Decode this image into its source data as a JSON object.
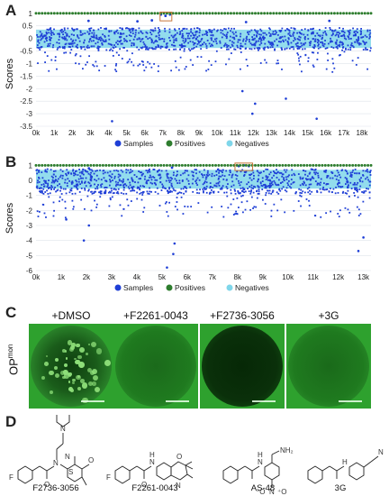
{
  "panels": {
    "a": "A",
    "b": "B",
    "c": "C",
    "d": "D"
  },
  "chart_data": [
    {
      "type": "scatter",
      "panel": "A",
      "title": "",
      "xlabel": "",
      "ylabel": "Scores",
      "xlim": [
        0,
        18500
      ],
      "ylim": [
        -3.5,
        1.1
      ],
      "x_ticks": [
        "0k",
        "1k",
        "2k",
        "3k",
        "4k",
        "5k",
        "6k",
        "7k",
        "8k",
        "9k",
        "10k",
        "11k",
        "12k",
        "13k",
        "14k",
        "15k",
        "16k",
        "17k",
        "18k"
      ],
      "y_ticks": [
        "1",
        "0.5",
        "0",
        "-0.5",
        "-1",
        "-1.5",
        "-2",
        "-2.5",
        "-3",
        "-3.5"
      ],
      "grid": true,
      "legend": [
        "Samples",
        "Positives",
        "Negatives"
      ],
      "legend_position": "bottom",
      "n_samples": 18500,
      "positives_value": 1,
      "negatives_band": [
        -0.38,
        0.35
      ],
      "samples_bulk_range": [
        -0.45,
        0.42
      ],
      "outlier_hits": [
        {
          "x": 6900,
          "y": 0.95
        },
        {
          "x": 7150,
          "y": 0.9
        },
        {
          "x": 7400,
          "y": 0.95
        },
        {
          "x": 6400,
          "y": 0.72
        },
        {
          "x": 5600,
          "y": 0.68
        },
        {
          "x": 2900,
          "y": 0.7
        },
        {
          "x": 11600,
          "y": 0.65
        },
        {
          "x": 16200,
          "y": 0.7
        }
      ],
      "low_outliers": [
        {
          "x": 11950,
          "y": -3.0
        },
        {
          "x": 15500,
          "y": -3.2
        },
        {
          "x": 4200,
          "y": -3.3
        },
        {
          "x": 12100,
          "y": -2.6
        },
        {
          "x": 11400,
          "y": -2.1
        },
        {
          "x": 13800,
          "y": -2.4
        }
      ],
      "highlight_box": {
        "x_range": [
          6850,
          7500
        ],
        "y_range": [
          0.7,
          1.05
        ]
      },
      "colors": {
        "samples": "#1f3fd6",
        "positives": "#2e7d2e",
        "negatives": "#7fd6ea"
      }
    },
    {
      "type": "scatter",
      "panel": "B",
      "title": "",
      "xlabel": "",
      "ylabel": "Scores",
      "xlim": [
        0,
        13300
      ],
      "ylim": [
        -6,
        1.2
      ],
      "x_ticks": [
        "0k",
        "1k",
        "2k",
        "3k",
        "4k",
        "5k",
        "6k",
        "7k",
        "8k",
        "9k",
        "10k",
        "11k",
        "12k",
        "13k"
      ],
      "y_ticks": [
        "1",
        "0",
        "-1",
        "-2",
        "-3",
        "-4",
        "-5",
        "-6"
      ],
      "grid": true,
      "legend": [
        "Samples",
        "Positives",
        "Negatives"
      ],
      "legend_position": "bottom",
      "n_samples": 13300,
      "positives_value": 1,
      "negatives_band": [
        -0.55,
        0.7
      ],
      "samples_bulk_range": [
        -0.9,
        0.75
      ],
      "outlier_hits": [
        {
          "x": 8050,
          "y": 0.95
        },
        {
          "x": 8250,
          "y": 1.0
        },
        {
          "x": 8450,
          "y": 0.95
        },
        {
          "x": 5400,
          "y": 0.85
        },
        {
          "x": 2100,
          "y": 0.8
        }
      ],
      "low_outliers": [
        {
          "x": 5200,
          "y": -5.8
        },
        {
          "x": 5450,
          "y": -4.9
        },
        {
          "x": 5500,
          "y": -4.2
        },
        {
          "x": 1900,
          "y": -4.0
        },
        {
          "x": 2100,
          "y": -3.0
        },
        {
          "x": 12800,
          "y": -4.7
        },
        {
          "x": 13000,
          "y": -3.8
        },
        {
          "x": 1200,
          "y": -2.6
        }
      ],
      "highlight_box": {
        "x_range": [
          7900,
          8600
        ],
        "y_range": [
          0.65,
          1.15
        ]
      },
      "colors": {
        "samples": "#1f3fd6",
        "positives": "#2e7d2e",
        "negatives": "#7fd6ea"
      }
    }
  ],
  "panel_c": {
    "row_label_main": "OP",
    "row_label_sup": "mon",
    "wells": [
      {
        "label": "+DMSO",
        "colonies": "many"
      },
      {
        "label": "+F2261-0043",
        "colonies": "few"
      },
      {
        "label": "+F2736-3056",
        "colonies": "none"
      },
      {
        "label": "+3G",
        "colonies": "few"
      }
    ]
  },
  "panel_d": {
    "compounds": [
      {
        "name": "F2736-3056"
      },
      {
        "name": "F2261-0043"
      },
      {
        "name": "AS-48"
      },
      {
        "name": "3G"
      }
    ],
    "atom_labels": {
      "f1": "F",
      "f2": "F",
      "o1": "O",
      "o2": "O",
      "o3": "O",
      "o4": "O",
      "o5": "O",
      "n1": "N",
      "n2": "N",
      "n3": "N",
      "n4": "N",
      "n5": "N",
      "n6": "N",
      "s1": "S",
      "nh1": "H",
      "nh2": "H",
      "nh3": "H",
      "nh4": "H",
      "nh2_group": "NH₂",
      "nitro": "N",
      "nitro_o_plus": "⁺O",
      "nitro_o_minus": "⁻O",
      "nitrile_n": "N"
    }
  }
}
